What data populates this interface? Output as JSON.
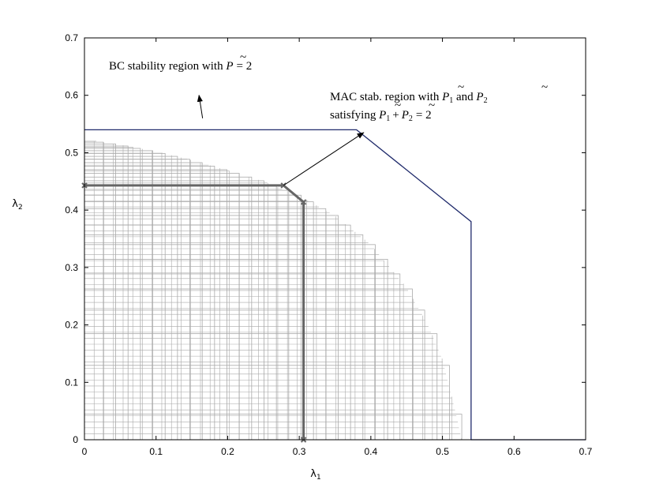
{
  "chart_data": {
    "type": "line",
    "title": "",
    "xlabel": "λ1",
    "ylabel": "λ2",
    "xlim": [
      0,
      0.7
    ],
    "ylim": [
      0,
      0.7
    ],
    "xticks": [
      "0",
      "0.1",
      "0.2",
      "0.3",
      "0.4",
      "0.5",
      "0.6",
      "0.7"
    ],
    "yticks": [
      "0",
      "0.1",
      "0.2",
      "0.3",
      "0.4",
      "0.5",
      "0.6",
      "0.7"
    ],
    "grid": false,
    "colors": {
      "bc": "#1f2a6b",
      "mac_grid": "#a9a9a9",
      "mac_highlight": "#666666"
    },
    "series": [
      {
        "id": "bc_region",
        "points": [
          [
            0,
            0.54
          ],
          [
            0.38,
            0.54
          ],
          [
            0.54,
            0.38
          ],
          [
            0.54,
            0
          ],
          [
            0.7,
            0
          ]
        ]
      },
      {
        "id": "mac_highlight",
        "points": [
          [
            0,
            0.443
          ],
          [
            0.278,
            0.443
          ],
          [
            0.306,
            0.414
          ],
          [
            0.306,
            0
          ]
        ]
      }
    ],
    "mac_envelope": [
      [
        0,
        0.523
      ],
      [
        0.05,
        0.514
      ],
      [
        0.1,
        0.502
      ],
      [
        0.15,
        0.487
      ],
      [
        0.2,
        0.469
      ],
      [
        0.25,
        0.45
      ],
      [
        0.3,
        0.425
      ],
      [
        0.35,
        0.39
      ],
      [
        0.4,
        0.34
      ],
      [
        0.45,
        0.265
      ],
      [
        0.48,
        0.2
      ],
      [
        0.5,
        0.14
      ],
      [
        0.51,
        0.09
      ],
      [
        0.52,
        0.04
      ],
      [
        0.527,
        0.0
      ]
    ],
    "annotations": [
      {
        "id": "bc",
        "line1": [
          "BC stability region with ",
          "P",
          "= 2"
        ],
        "arrow_from": [
          0.165,
          0.56
        ],
        "arrow_to": [
          0.16,
          0.6
        ]
      },
      {
        "id": "mac",
        "line1": [
          "MAC stab. region with ",
          "P",
          "1",
          " and ",
          "P",
          "2"
        ],
        "line2": [
          "satisfying ",
          "P",
          "1",
          "+",
          "P",
          "2",
          "= 2"
        ],
        "arrow_from": [
          0.278,
          0.443
        ],
        "arrow_to": [
          0.39,
          0.535
        ]
      }
    ]
  }
}
